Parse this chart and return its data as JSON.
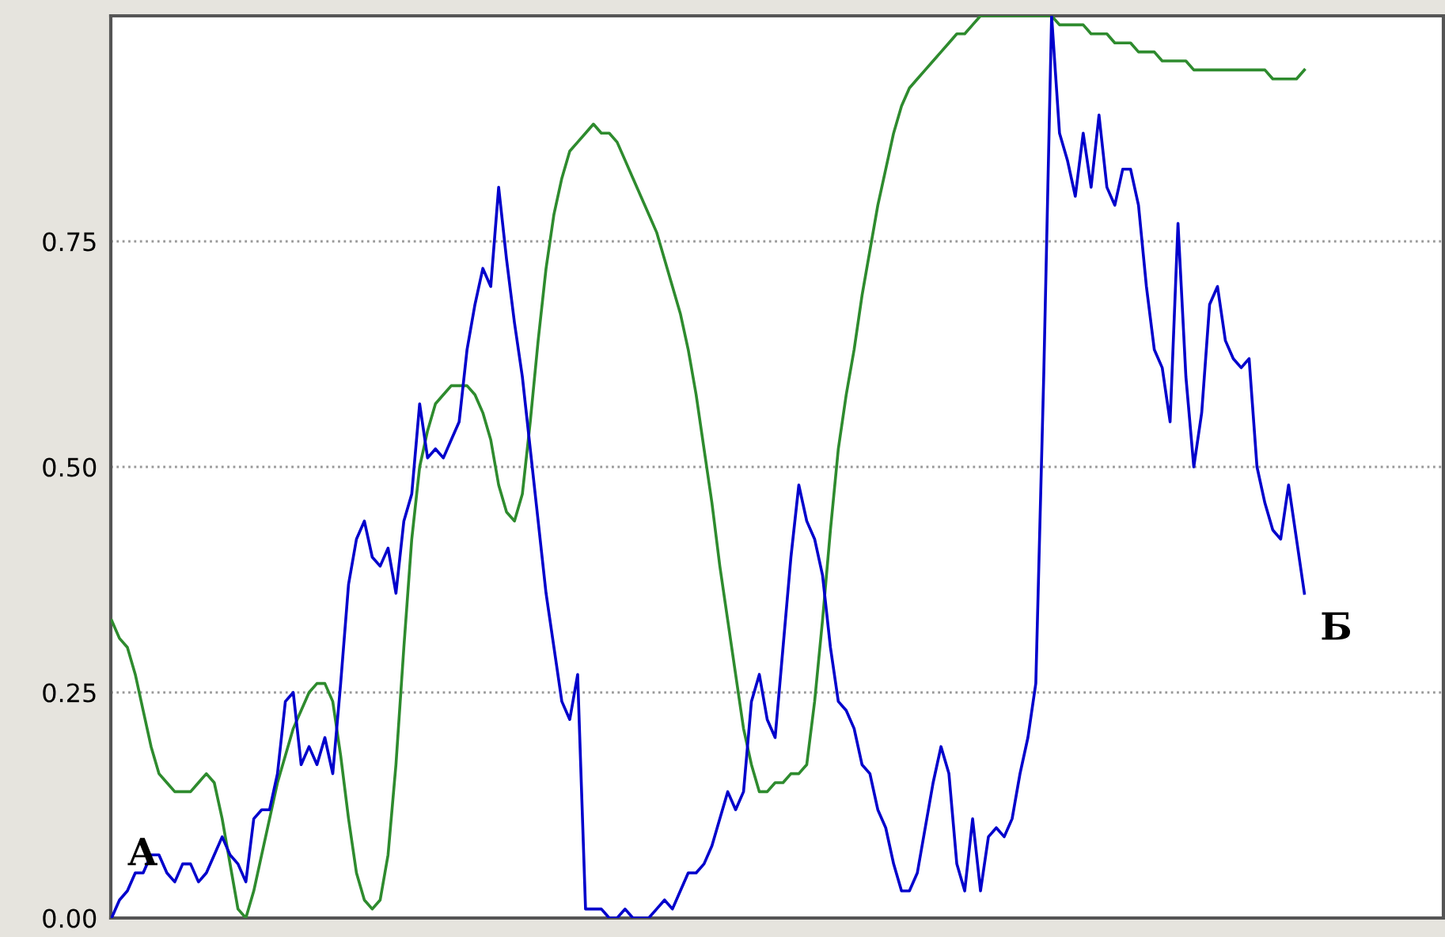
{
  "chart_data": {
    "type": "line",
    "categories": [
      null,
      null,
      null,
      null,
      null,
      null,
      null,
      null,
      null,
      null,
      null,
      null,
      null,
      null,
      null,
      null,
      null,
      null,
      null,
      null,
      null,
      null,
      null,
      null,
      null,
      null,
      null,
      null,
      null,
      null,
      null,
      null,
      null,
      null,
      null,
      null,
      null,
      null,
      null,
      null,
      null,
      null,
      null,
      null,
      null,
      null,
      null,
      null,
      null,
      null,
      null,
      null,
      null,
      null,
      null,
      null,
      null,
      null,
      null,
      null,
      null,
      null,
      null,
      null,
      null,
      null,
      null,
      null,
      null,
      null,
      null,
      null,
      null,
      null,
      null,
      null,
      null,
      null,
      null,
      null,
      null,
      null,
      null,
      null,
      null,
      null,
      null,
      null,
      null,
      null,
      null,
      null,
      null,
      null,
      null,
      null,
      null,
      null,
      null,
      null,
      null,
      null,
      null,
      null,
      null,
      null,
      null,
      null,
      null,
      null,
      null,
      null,
      null,
      null,
      null,
      null,
      null,
      null,
      null,
      null,
      null,
      null,
      null,
      null,
      null,
      null,
      null,
      null,
      null,
      null,
      null,
      null,
      null,
      null,
      null,
      null,
      null,
      null,
      null,
      null,
      null,
      null,
      null,
      null,
      null,
      null,
      null,
      null,
      null,
      null,
      null,
      null
    ],
    "series": [
      {
        "color": "#0000cc",
        "values": [
          0.0,
          0.02,
          0.03,
          0.05,
          0.05,
          0.07,
          0.07,
          0.05,
          0.04,
          0.06,
          0.06,
          0.04,
          0.05,
          0.07,
          0.09,
          0.07,
          0.06,
          0.04,
          0.11,
          0.12,
          0.12,
          0.16,
          0.24,
          0.25,
          0.17,
          0.19,
          0.17,
          0.2,
          0.16,
          0.26,
          0.37,
          0.42,
          0.44,
          0.4,
          0.39,
          0.41,
          0.36,
          0.44,
          0.47,
          0.57,
          0.51,
          0.52,
          0.51,
          0.53,
          0.55,
          0.63,
          0.68,
          0.72,
          0.7,
          0.81,
          0.73,
          0.66,
          0.6,
          0.52,
          0.44,
          0.36,
          0.3,
          0.24,
          0.22,
          0.27,
          0.01,
          0.01,
          0.01,
          0.0,
          0.0,
          0.01,
          0.0,
          0.0,
          0.0,
          0.01,
          0.02,
          0.01,
          0.03,
          0.05,
          0.05,
          0.06,
          0.08,
          0.11,
          0.14,
          0.12,
          0.14,
          0.24,
          0.27,
          0.22,
          0.2,
          0.3,
          0.4,
          0.48,
          0.44,
          0.42,
          0.38,
          0.3,
          0.24,
          0.23,
          0.21,
          0.17,
          0.16,
          0.12,
          0.1,
          0.06,
          0.03,
          0.03,
          0.05,
          0.1,
          0.15,
          0.19,
          0.16,
          0.06,
          0.03,
          0.11,
          0.03,
          0.09,
          0.1,
          0.09,
          0.11,
          0.16,
          0.2,
          0.26,
          0.6,
          1.0,
          0.87,
          0.84,
          0.8,
          0.87,
          0.81,
          0.89,
          0.81,
          0.79,
          0.83,
          0.83,
          0.79,
          0.7,
          0.63,
          0.61,
          0.55,
          0.77,
          0.6,
          0.5,
          0.56,
          0.68,
          0.7,
          0.64,
          0.62,
          0.61,
          0.62,
          0.5,
          0.46,
          0.43,
          0.42,
          0.48,
          0.42,
          0.36
        ]
      },
      {
        "color": "#2e8b2e",
        "values": [
          0.33,
          0.31,
          0.3,
          0.27,
          0.23,
          0.19,
          0.16,
          0.15,
          0.14,
          0.14,
          0.14,
          0.15,
          0.16,
          0.15,
          0.11,
          0.06,
          0.01,
          0.0,
          0.03,
          0.07,
          0.11,
          0.15,
          0.18,
          0.21,
          0.23,
          0.25,
          0.26,
          0.26,
          0.24,
          0.18,
          0.11,
          0.05,
          0.02,
          0.01,
          0.02,
          0.07,
          0.17,
          0.3,
          0.42,
          0.5,
          0.54,
          0.57,
          0.58,
          0.59,
          0.59,
          0.59,
          0.58,
          0.56,
          0.53,
          0.48,
          0.45,
          0.44,
          0.47,
          0.55,
          0.64,
          0.72,
          0.78,
          0.82,
          0.85,
          0.86,
          0.87,
          0.88,
          0.87,
          0.87,
          0.86,
          0.84,
          0.82,
          0.8,
          0.78,
          0.76,
          0.73,
          0.7,
          0.67,
          0.63,
          0.58,
          0.52,
          0.46,
          0.39,
          0.33,
          0.27,
          0.21,
          0.17,
          0.14,
          0.14,
          0.15,
          0.15,
          0.16,
          0.16,
          0.17,
          0.24,
          0.33,
          0.43,
          0.52,
          0.58,
          0.63,
          0.69,
          0.74,
          0.79,
          0.83,
          0.87,
          0.9,
          0.92,
          0.93,
          0.94,
          0.95,
          0.96,
          0.97,
          0.98,
          0.98,
          0.99,
          1.0,
          1.0,
          1.0,
          1.0,
          1.0,
          1.0,
          1.0,
          1.0,
          1.0,
          1.0,
          0.99,
          0.99,
          0.99,
          0.99,
          0.98,
          0.98,
          0.98,
          0.97,
          0.97,
          0.97,
          0.96,
          0.96,
          0.96,
          0.95,
          0.95,
          0.95,
          0.95,
          0.94,
          0.94,
          0.94,
          0.94,
          0.94,
          0.94,
          0.94,
          0.94,
          0.94,
          0.94,
          0.93,
          0.93,
          0.93,
          0.93,
          0.94
        ]
      }
    ],
    "annotations": [
      "А",
      "Б"
    ],
    "ylim": [
      0,
      1
    ],
    "yticks": [
      {
        "value": 0,
        "label": "0.00"
      },
      {
        "value": 0.25,
        "label": "0.25"
      },
      {
        "value": 0.5,
        "label": "0.50"
      },
      {
        "value": 0.75,
        "label": "0.75"
      },
      {
        "value": 1,
        "label": null
      }
    ],
    "grid": "y",
    "tick_labels": "y",
    "marker": "none",
    "line_style": "solid"
  }
}
